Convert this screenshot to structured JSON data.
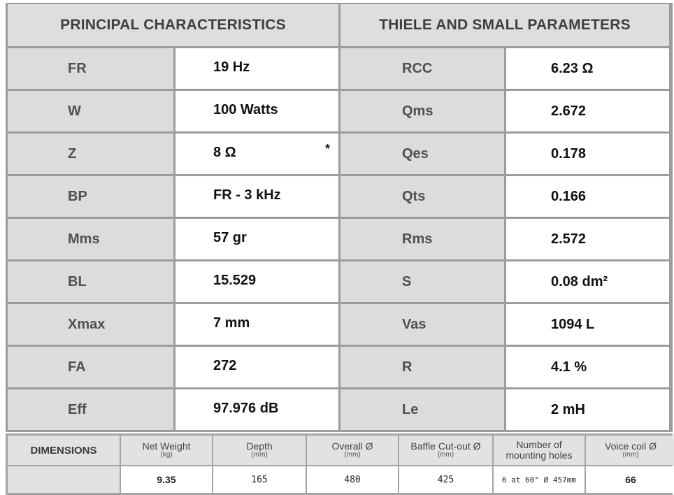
{
  "headers": {
    "principal": "PRINCIPAL CHARACTERISTICS",
    "ts": "THIELE AND SMALL PARAMETERS"
  },
  "principal": [
    {
      "label": "FR",
      "value": "19 Hz"
    },
    {
      "label": "W",
      "value": "100 Watts"
    },
    {
      "label": "Z",
      "value": "8 Ω",
      "note": "*"
    },
    {
      "label": "BP",
      "value": "FR - 3 kHz"
    },
    {
      "label": "Mms",
      "value": "57 gr"
    },
    {
      "label": "BL",
      "value": "15.529"
    },
    {
      "label": "Xmax",
      "value": "7 mm"
    },
    {
      "label": "FA",
      "value": "272"
    },
    {
      "label": "Eff",
      "value": "97.976 dB"
    }
  ],
  "ts": [
    {
      "label": "RCC",
      "value": "6.23 Ω"
    },
    {
      "label": "Qms",
      "value": "2.672"
    },
    {
      "label": "Qes",
      "value": "0.178"
    },
    {
      "label": "Qts",
      "value": "0.166"
    },
    {
      "label": "Rms",
      "value": "2.572"
    },
    {
      "label": "S",
      "value": "0.08 dm²"
    },
    {
      "label": "Vas",
      "value": "1094 L"
    },
    {
      "label": "R",
      "value": "4.1 %"
    },
    {
      "label": "Le",
      "value": "2 mH"
    }
  ],
  "dimensions": {
    "label": "DIMENSIONS",
    "columns": [
      {
        "title": "Net Weight",
        "unit": "(kg)",
        "value": "9.35"
      },
      {
        "title": "Depth",
        "unit": "(mm)",
        "value": "165"
      },
      {
        "title": "Overall Ø",
        "unit": "(mm)",
        "value": "480"
      },
      {
        "title": "Baffle Cut-out Ø",
        "unit": "(mm)",
        "value": "425"
      },
      {
        "title": "Number of",
        "title2": "mounting holes",
        "value": "6 at 60° Ø 457mm"
      },
      {
        "title": "Voice coil Ø",
        "unit": "(mm)",
        "value": "66"
      }
    ]
  }
}
